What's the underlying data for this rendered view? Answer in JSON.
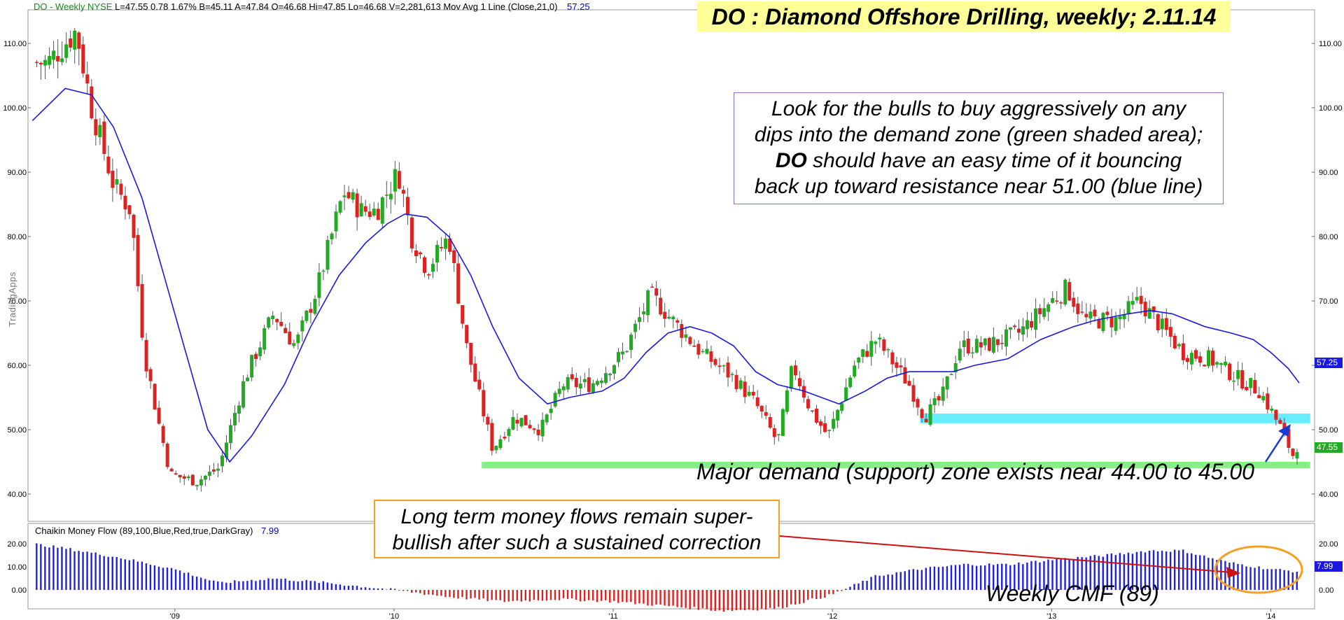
{
  "header": {
    "symbol": "DO - Weekly NYSE",
    "stats": "L=47.55  0.78  1.67%  B=45.11  A=47.84  O=46.68  Hi=47.85  Lo=46.68  V=2,281,613",
    "ma_label": "Mov Avg 1 Line (Close,21,0)",
    "ma_value": "57.25"
  },
  "title": "DO : Diamond Offshore Drilling, weekly; 2.11.14",
  "note": {
    "line1": "Look for the bulls to buy aggressively on any",
    "line2": "dips into the demand zone (green shaded area);",
    "line3_bold": "DO",
    "line3_rest": " should have an easy time of it bouncing",
    "line4": "back up toward resistance near 51.00 (blue line)"
  },
  "demand_label": "Major demand (support) zone exists near 44.00 to 45.00",
  "money_note": {
    "line1": "Long term money flows remain super-",
    "line2": "bullish after such a sustained correction"
  },
  "cmf_label": "Weekly CMF (89)",
  "cmf_header": {
    "label": "Chaikin Money Flow (89,100,Blue,Red,true,DarkGray)",
    "value": "7.99"
  },
  "watermark": "TradingApps",
  "price_tags": {
    "ma": "57.25",
    "last": "47.55",
    "cmf": "7.99"
  },
  "colors": {
    "up": "#22aa22",
    "down": "#dd2222",
    "ma": "#1a1adf",
    "resistance": "#66eeff",
    "support": "#88ee88",
    "cmf_pos": "#2020e0",
    "cmf_neg": "#e02020",
    "arrow_red": "#cc1111",
    "arrow_blue": "#1a3ad0"
  },
  "chart_data": [
    {
      "type": "candlestick",
      "title": "DO : Diamond Offshore Drilling, weekly; 2.11.14",
      "y_ticks": [
        "110.00",
        "100.00",
        "90.00",
        "80.00",
        "70.00",
        "60.00",
        "50.00",
        "40.00"
      ],
      "x_ticks": [
        "'09",
        "'10",
        "'11",
        "'12",
        "'13",
        "'14"
      ],
      "ylim": [
        35,
        115
      ],
      "anchors": [
        {
          "year": 2008.42,
          "close": 107
        },
        {
          "year": 2008.55,
          "close": 112
        },
        {
          "year": 2008.62,
          "close": 100
        },
        {
          "year": 2008.72,
          "close": 88
        },
        {
          "year": 2008.8,
          "close": 84
        },
        {
          "year": 2008.86,
          "close": 62
        },
        {
          "year": 2008.92,
          "close": 52
        },
        {
          "year": 2008.98,
          "close": 43
        },
        {
          "year": 2009.1,
          "close": 42
        },
        {
          "year": 2009.2,
          "close": 44
        },
        {
          "year": 2009.32,
          "close": 58
        },
        {
          "year": 2009.45,
          "close": 68
        },
        {
          "year": 2009.55,
          "close": 63
        },
        {
          "year": 2009.65,
          "close": 72
        },
        {
          "year": 2009.77,
          "close": 87
        },
        {
          "year": 2009.85,
          "close": 84
        },
        {
          "year": 2009.92,
          "close": 84
        },
        {
          "year": 2010.02,
          "close": 90
        },
        {
          "year": 2010.08,
          "close": 80
        },
        {
          "year": 2010.15,
          "close": 75
        },
        {
          "year": 2010.25,
          "close": 80
        },
        {
          "year": 2010.33,
          "close": 63
        },
        {
          "year": 2010.45,
          "close": 47
        },
        {
          "year": 2010.55,
          "close": 52
        },
        {
          "year": 2010.67,
          "close": 50
        },
        {
          "year": 2010.77,
          "close": 57
        },
        {
          "year": 2010.9,
          "close": 57
        },
        {
          "year": 2011.05,
          "close": 62
        },
        {
          "year": 2011.17,
          "close": 71
        },
        {
          "year": 2011.27,
          "close": 67
        },
        {
          "year": 2011.4,
          "close": 62
        },
        {
          "year": 2011.55,
          "close": 58
        },
        {
          "year": 2011.65,
          "close": 54
        },
        {
          "year": 2011.75,
          "close": 48
        },
        {
          "year": 2011.82,
          "close": 60
        },
        {
          "year": 2011.9,
          "close": 53
        },
        {
          "year": 2011.98,
          "close": 49
        },
        {
          "year": 2012.1,
          "close": 60
        },
        {
          "year": 2012.2,
          "close": 64
        },
        {
          "year": 2012.35,
          "close": 57
        },
        {
          "year": 2012.42,
          "close": 52
        },
        {
          "year": 2012.5,
          "close": 55
        },
        {
          "year": 2012.58,
          "close": 63
        },
        {
          "year": 2012.7,
          "close": 63
        },
        {
          "year": 2012.85,
          "close": 65
        },
        {
          "year": 2013.0,
          "close": 70
        },
        {
          "year": 2013.07,
          "close": 72
        },
        {
          "year": 2013.15,
          "close": 67
        },
        {
          "year": 2013.3,
          "close": 67
        },
        {
          "year": 2013.4,
          "close": 70
        },
        {
          "year": 2013.5,
          "close": 66
        },
        {
          "year": 2013.6,
          "close": 62
        },
        {
          "year": 2013.72,
          "close": 61
        },
        {
          "year": 2013.85,
          "close": 58
        },
        {
          "year": 2013.95,
          "close": 56
        },
        {
          "year": 2014.05,
          "close": 50
        },
        {
          "year": 2014.1,
          "close": 46
        },
        {
          "year": 2014.12,
          "close": 47.55
        }
      ],
      "series": [
        {
          "name": "Mov Avg 1 Line (Close,21,0)",
          "points": [
            {
              "year": 2008.35,
              "value": 98
            },
            {
              "year": 2008.5,
              "value": 103
            },
            {
              "year": 2008.62,
              "value": 102
            },
            {
              "year": 2008.72,
              "value": 97
            },
            {
              "year": 2008.85,
              "value": 86
            },
            {
              "year": 2008.95,
              "value": 74
            },
            {
              "year": 2009.05,
              "value": 62
            },
            {
              "year": 2009.15,
              "value": 50
            },
            {
              "year": 2009.25,
              "value": 45
            },
            {
              "year": 2009.35,
              "value": 49
            },
            {
              "year": 2009.5,
              "value": 57
            },
            {
              "year": 2009.62,
              "value": 66
            },
            {
              "year": 2009.75,
              "value": 74
            },
            {
              "year": 2009.87,
              "value": 79
            },
            {
              "year": 2009.97,
              "value": 82
            },
            {
              "year": 2010.05,
              "value": 83.5
            },
            {
              "year": 2010.15,
              "value": 83
            },
            {
              "year": 2010.25,
              "value": 80
            },
            {
              "year": 2010.35,
              "value": 74
            },
            {
              "year": 2010.45,
              "value": 66
            },
            {
              "year": 2010.57,
              "value": 58
            },
            {
              "year": 2010.7,
              "value": 54
            },
            {
              "year": 2010.8,
              "value": 55
            },
            {
              "year": 2010.95,
              "value": 56
            },
            {
              "year": 2011.05,
              "value": 58
            },
            {
              "year": 2011.15,
              "value": 62
            },
            {
              "year": 2011.25,
              "value": 65
            },
            {
              "year": 2011.35,
              "value": 66
            },
            {
              "year": 2011.45,
              "value": 65
            },
            {
              "year": 2011.55,
              "value": 63
            },
            {
              "year": 2011.65,
              "value": 59
            },
            {
              "year": 2011.75,
              "value": 57
            },
            {
              "year": 2011.87,
              "value": 56
            },
            {
              "year": 2011.95,
              "value": 55
            },
            {
              "year": 2012.03,
              "value": 54
            },
            {
              "year": 2012.15,
              "value": 56
            },
            {
              "year": 2012.25,
              "value": 58
            },
            {
              "year": 2012.35,
              "value": 59
            },
            {
              "year": 2012.45,
              "value": 59
            },
            {
              "year": 2012.55,
              "value": 59
            },
            {
              "year": 2012.65,
              "value": 60
            },
            {
              "year": 2012.8,
              "value": 61
            },
            {
              "year": 2012.95,
              "value": 64
            },
            {
              "year": 2013.1,
              "value": 66
            },
            {
              "year": 2013.2,
              "value": 67
            },
            {
              "year": 2013.35,
              "value": 68
            },
            {
              "year": 2013.45,
              "value": 68.5
            },
            {
              "year": 2013.55,
              "value": 68
            },
            {
              "year": 2013.7,
              "value": 66
            },
            {
              "year": 2013.82,
              "value": 65
            },
            {
              "year": 2013.92,
              "value": 64
            },
            {
              "year": 2014.0,
              "value": 62
            },
            {
              "year": 2014.08,
              "value": 59.5
            },
            {
              "year": 2014.13,
              "value": 57.25
            }
          ]
        }
      ],
      "zones": [
        {
          "name": "resistance",
          "from": 51,
          "to": 52.5,
          "start_year": 2012.4,
          "end_year": 2014.18
        },
        {
          "name": "support",
          "from": 44,
          "to": 45,
          "start_year": 2010.4,
          "end_year": 2014.18
        }
      ]
    },
    {
      "type": "bar",
      "title": "Chaikin Money Flow (89,100,Blue,Red,true,DarkGray)",
      "y_ticks": [
        "20.00",
        "10.00",
        "0.00"
      ],
      "ylim": [
        -10,
        22
      ],
      "last_value": 7.99,
      "profile": [
        {
          "year": 2008.35,
          "value": 20
        },
        {
          "year": 2008.5,
          "value": 18
        },
        {
          "year": 2008.75,
          "value": 14
        },
        {
          "year": 2009.0,
          "value": 9
        },
        {
          "year": 2009.2,
          "value": 3
        },
        {
          "year": 2009.45,
          "value": 5
        },
        {
          "year": 2009.7,
          "value": 3
        },
        {
          "year": 2009.9,
          "value": 1
        },
        {
          "year": 2010.0,
          "value": 0
        },
        {
          "year": 2010.25,
          "value": -3
        },
        {
          "year": 2010.5,
          "value": -5
        },
        {
          "year": 2010.75,
          "value": -4
        },
        {
          "year": 2011.0,
          "value": -5
        },
        {
          "year": 2011.25,
          "value": -7
        },
        {
          "year": 2011.5,
          "value": -9
        },
        {
          "year": 2011.75,
          "value": -8
        },
        {
          "year": 2012.0,
          "value": -2
        },
        {
          "year": 2012.2,
          "value": 6
        },
        {
          "year": 2012.4,
          "value": 9
        },
        {
          "year": 2012.6,
          "value": 11
        },
        {
          "year": 2012.8,
          "value": 11
        },
        {
          "year": 2013.0,
          "value": 13
        },
        {
          "year": 2013.25,
          "value": 15
        },
        {
          "year": 2013.45,
          "value": 17
        },
        {
          "year": 2013.6,
          "value": 17
        },
        {
          "year": 2013.8,
          "value": 12
        },
        {
          "year": 2014.0,
          "value": 9
        },
        {
          "year": 2014.12,
          "value": 7.99
        }
      ]
    }
  ]
}
